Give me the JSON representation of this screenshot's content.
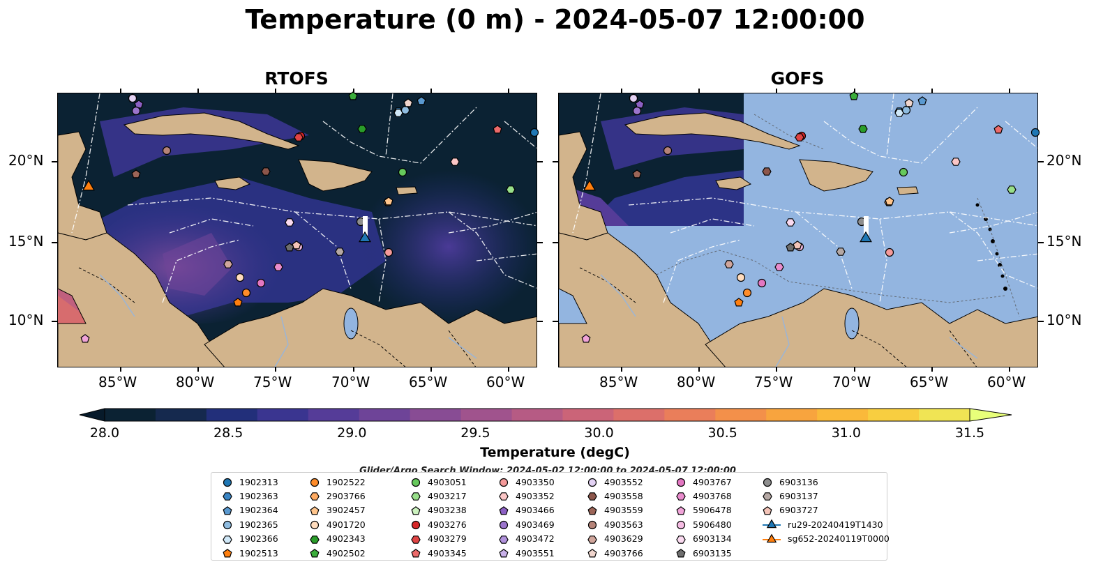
{
  "title": "Temperature (0 m) - 2024-05-07 12:00:00",
  "panels": [
    {
      "title": "RTOFS"
    },
    {
      "title": "GOFS"
    }
  ],
  "lon_ticks": [
    "85°W",
    "80°W",
    "75°W",
    "70°W",
    "65°W",
    "60°W"
  ],
  "lat_ticks": [
    "20°N",
    "15°N",
    "10°N"
  ],
  "colorbar": {
    "label": "Temperature (degC)",
    "ticks": [
      "28.0",
      "28.5",
      "29.0",
      "29.5",
      "30.0",
      "30.5",
      "31.0",
      "31.5"
    ],
    "range": [
      28.0,
      31.5
    ],
    "colors": [
      "#0b2233",
      "#15294e",
      "#222f7a",
      "#3a3590",
      "#553c98",
      "#6e4498",
      "#884c94",
      "#a0538d",
      "#b65b84",
      "#cb6478",
      "#dc6f6a",
      "#ea7e5a",
      "#f3904a",
      "#f8a43e",
      "#fab93a",
      "#f8ce40",
      "#f0e454"
    ],
    "under_color": "#071a2a",
    "over_color": "#e8ff7a"
  },
  "search_window": "Glider/Argo Search Window: 2024-05-02 12:00:00 to 2024-05-07 12:00:00",
  "legend": [
    {
      "label": "1902313",
      "marker": "circle",
      "color": "#1f77b4"
    },
    {
      "label": "1902363",
      "marker": "hexagon",
      "color": "#3a85c4"
    },
    {
      "label": "1902364",
      "marker": "pentagon",
      "color": "#5a99d0"
    },
    {
      "label": "1902365",
      "marker": "circle",
      "color": "#8fbce0"
    },
    {
      "label": "1902366",
      "marker": "hexagon",
      "color": "#d0e8f8"
    },
    {
      "label": "1902513",
      "marker": "pentagon",
      "color": "#ff7f0e"
    },
    {
      "label": "1902522",
      "marker": "circle",
      "color": "#ff8c2a"
    },
    {
      "label": "2903766",
      "marker": "hexagon",
      "color": "#ffab62"
    },
    {
      "label": "3902457",
      "marker": "pentagon",
      "color": "#ffc58c"
    },
    {
      "label": "4901720",
      "marker": "circle",
      "color": "#ffdcbd"
    },
    {
      "label": "4902343",
      "marker": "hexagon",
      "color": "#2a9d2a"
    },
    {
      "label": "4902502",
      "marker": "pentagon",
      "color": "#3cae3c"
    },
    {
      "label": "4903051",
      "marker": "circle",
      "color": "#66c95c"
    },
    {
      "label": "4903217",
      "marker": "hexagon",
      "color": "#98df8a"
    },
    {
      "label": "4903238",
      "marker": "pentagon",
      "color": "#ccf2bf"
    },
    {
      "label": "4903276",
      "marker": "circle",
      "color": "#d62728"
    },
    {
      "label": "4903279",
      "marker": "hexagon",
      "color": "#e04444"
    },
    {
      "label": "4903345",
      "marker": "pentagon",
      "color": "#ec6a6a"
    },
    {
      "label": "4903350",
      "marker": "circle",
      "color": "#f59a9a"
    },
    {
      "label": "4903352",
      "marker": "hexagon",
      "color": "#fbc6c6"
    },
    {
      "label": "4903466",
      "marker": "pentagon",
      "color": "#8c60c4"
    },
    {
      "label": "4903469",
      "marker": "circle",
      "color": "#9b74cc"
    },
    {
      "label": "4903472",
      "marker": "hexagon",
      "color": "#b192dc"
    },
    {
      "label": "4903551",
      "marker": "pentagon",
      "color": "#c8b0e8"
    },
    {
      "label": "4903552",
      "marker": "circle",
      "color": "#e3d2f4"
    },
    {
      "label": "4903558",
      "marker": "hexagon",
      "color": "#8c564b"
    },
    {
      "label": "4903559",
      "marker": "pentagon",
      "color": "#9c6558"
    },
    {
      "label": "4903563",
      "marker": "circle",
      "color": "#b58378"
    },
    {
      "label": "4903629",
      "marker": "hexagon",
      "color": "#d1a69c"
    },
    {
      "label": "4903766",
      "marker": "pentagon",
      "color": "#f0d5cd"
    },
    {
      "label": "4903767",
      "marker": "circle",
      "color": "#e377c2"
    },
    {
      "label": "4903768",
      "marker": "hexagon",
      "color": "#e98ccd"
    },
    {
      "label": "5906478",
      "marker": "pentagon",
      "color": "#f0a3d8"
    },
    {
      "label": "5906480",
      "marker": "circle",
      "color": "#f5bce3"
    },
    {
      "label": "6903134",
      "marker": "hexagon",
      "color": "#fadaf0"
    },
    {
      "label": "6903135",
      "marker": "pentagon",
      "color": "#6e6e6e"
    },
    {
      "label": "6903136",
      "marker": "circle",
      "color": "#8e8e8e"
    },
    {
      "label": "6903137",
      "marker": "hexagon",
      "color": "#b5a8a4"
    },
    {
      "label": "6903727",
      "marker": "pentagon",
      "color": "#f4c4b8"
    },
    {
      "label": "ru29-20240419T1430",
      "marker": "triangle",
      "color": "#1f77b4",
      "line": true
    },
    {
      "label": "sg652-20240119T0000",
      "marker": "triangle",
      "color": "#ff7f0e",
      "line": true
    }
  ],
  "colors": {
    "land": "#d2b48c",
    "gofs_ocean": "#93b5e0",
    "rtofs_deep": "#0a2233"
  }
}
